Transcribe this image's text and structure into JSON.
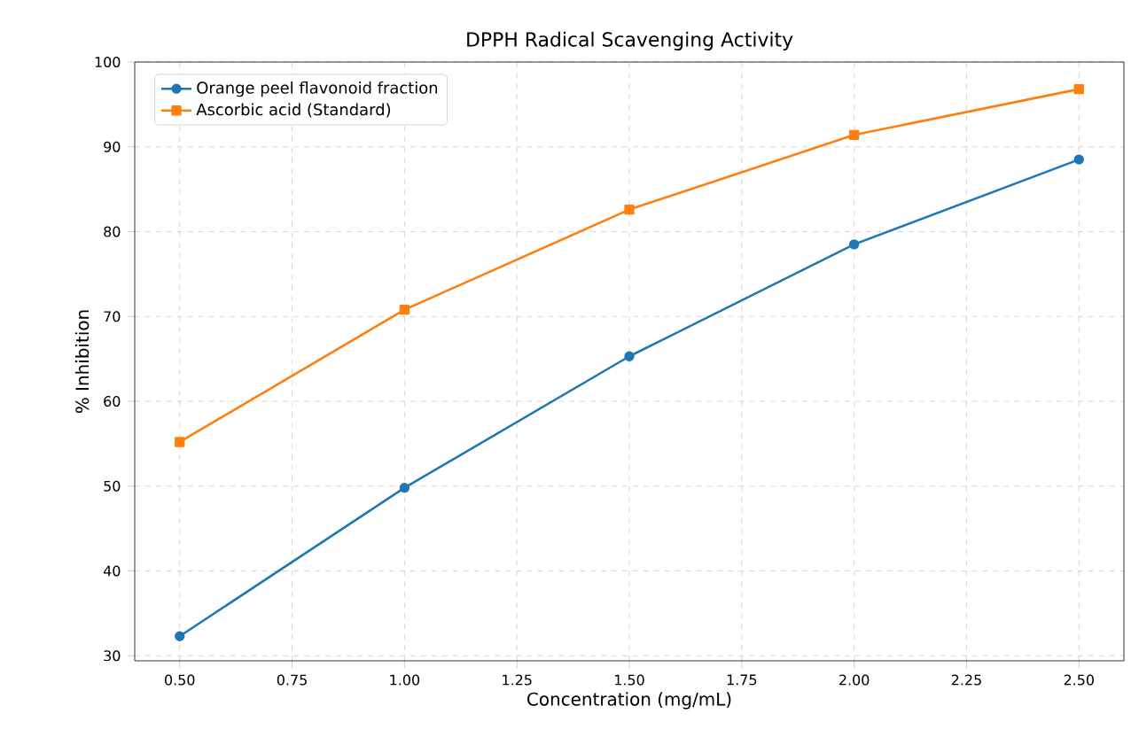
{
  "chart_data": {
    "type": "line",
    "title": "DPPH Radical Scavenging Activity",
    "xlabel": "Concentration (mg/mL)",
    "ylabel": "% Inhibition",
    "x": [
      0.5,
      1.0,
      1.5,
      2.0,
      2.5
    ],
    "series": [
      {
        "name": "Orange peel flavonoid fraction",
        "color": "#1f77b4",
        "marker": "circle",
        "values": [
          32.3,
          49.8,
          65.3,
          78.5,
          88.5
        ]
      },
      {
        "name": "Ascorbic acid (Standard)",
        "color": "#ff7f0e",
        "marker": "square",
        "values": [
          55.2,
          70.8,
          82.6,
          91.4,
          96.8
        ]
      }
    ],
    "xlim": [
      0.4,
      2.6
    ],
    "ylim": [
      29.4,
      100
    ],
    "xticks": [
      {
        "value": 0.5,
        "label": "0.50"
      },
      {
        "value": 0.75,
        "label": "0.75"
      },
      {
        "value": 1.0,
        "label": "1.00"
      },
      {
        "value": 1.25,
        "label": "1.25"
      },
      {
        "value": 1.5,
        "label": "1.50"
      },
      {
        "value": 1.75,
        "label": "1.75"
      },
      {
        "value": 2.0,
        "label": "2.00"
      },
      {
        "value": 2.25,
        "label": "2.25"
      },
      {
        "value": 2.5,
        "label": "2.50"
      }
    ],
    "yticks": [
      30,
      40,
      50,
      60,
      70,
      80,
      90,
      100
    ],
    "grid": true,
    "legend": "top left",
    "line_style": "solid"
  }
}
